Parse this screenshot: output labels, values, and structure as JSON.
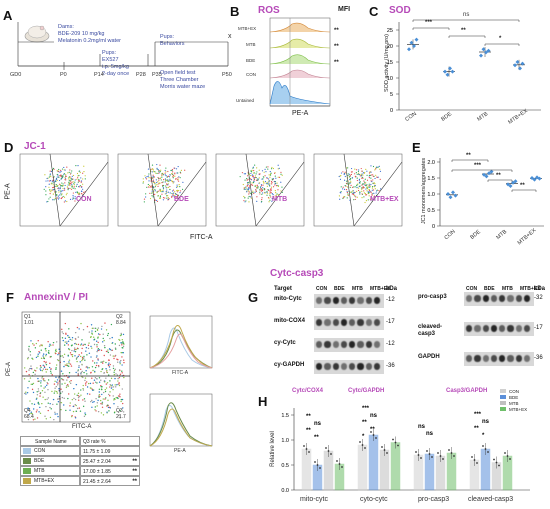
{
  "panels": {
    "A": {
      "label": "A",
      "dams_title": "Dams:",
      "dams_lines": [
        "BDE-209 10 mg/kg",
        "Melatonin 0.2mg/ml water"
      ],
      "pups1_title": "Pups:",
      "pups1_lines": [
        "EX527",
        "i.p. 5mg/kg",
        "2-day once"
      ],
      "pups2_title": "Pups:",
      "pups2_lines": [
        "Behaviors",
        "Open field test",
        "Three Chamber",
        "Morris water maze"
      ],
      "ticks": [
        "GD0",
        "P0",
        "P14",
        "P28",
        "P35",
        "P50"
      ],
      "end_mark": "x"
    },
    "B": {
      "label": "B",
      "title": "ROS",
      "mfi_label": "MFI",
      "xlabel": "PE-A",
      "rows": [
        "MTB+EX",
        "MTB",
        "BDE",
        "CON",
        "Untained"
      ],
      "sig": [
        "**",
        "**",
        "**"
      ],
      "colors": [
        "#e6a65a",
        "#b9c64a",
        "#9ad05a",
        "#d9a3b0",
        "#3a8fd6"
      ]
    },
    "C": {
      "label": "C",
      "title": "SOD",
      "ylabel": "SOD activity (U/mg pro)",
      "yticks": [
        "0",
        "5",
        "10",
        "15",
        "20",
        "25"
      ],
      "categories": [
        "CON",
        "BDE",
        "MTB",
        "MTB+EX"
      ],
      "sig": [
        "ns",
        "***",
        "**",
        "*"
      ]
    },
    "D": {
      "label": "D",
      "title": "JC-1",
      "ylabel": "PE-A",
      "xlabel": "FITC-A",
      "plots": [
        "CON",
        "BDE",
        "MTB",
        "MTB+EX"
      ]
    },
    "E": {
      "label": "E",
      "ylabel": "JC1 monomers/aggregates",
      "yticks": [
        "0",
        "0.5",
        "1.0",
        "1.5",
        "2.0"
      ],
      "categories": [
        "CON",
        "BDE",
        "MTB",
        "MTB+EX"
      ],
      "sig": [
        "**",
        "***",
        "**",
        "**"
      ]
    },
    "F": {
      "label": "F",
      "title": "AnnexinV / PI",
      "ylabel": "PE-A",
      "xlabel": "FITC-A",
      "quadrants": [
        {
          "name": "Q1",
          "value": "1.01"
        },
        {
          "name": "Q2",
          "value": "8.84"
        },
        {
          "name": "Q4",
          "value": "68.4"
        },
        {
          "name": "Q3",
          "value": "21.7"
        }
      ],
      "hist_x1": "FITC-A",
      "hist_x2": "PE-A",
      "table_header": [
        "Sample Name",
        "Q3 rate %"
      ],
      "table_rows": [
        {
          "name": "CON",
          "value": "11.75 ± 1.09",
          "stars": "",
          "color": "#a9c9e6"
        },
        {
          "name": "BDE",
          "value": "25.47 ± 2.04",
          "stars": "**",
          "color": "#6b8c4a"
        },
        {
          "name": "MTB",
          "value": "17.00 ± 1.85",
          "stars": "**",
          "color": "#6fae52"
        },
        {
          "name": "MTB+EX",
          "value": "21.45 ± 2.64",
          "stars": "**",
          "color": "#c0a84a"
        }
      ]
    },
    "G": {
      "label": "G",
      "title": "Cytc-casp3",
      "target_label": "Target",
      "kda_label": "kDa",
      "lanes": [
        "CON",
        "BDE",
        "MTB",
        "MTB+EX"
      ],
      "left_rows": [
        {
          "name": "mito-Cytc",
          "kda": "-12"
        },
        {
          "name": "mito-COX4",
          "kda": "-17"
        },
        {
          "name": "cy-Cytc",
          "kda": "-12"
        },
        {
          "name": "cy-GAPDH",
          "kda": "-36"
        }
      ],
      "right_rows": [
        {
          "name": "pro-casp3",
          "kda": "-32"
        },
        {
          "name": "cleaved-casp3",
          "kda": "-17"
        },
        {
          "name": "GAPDH",
          "kda": "-36"
        }
      ]
    },
    "H": {
      "label": "H",
      "ylabel": "Relative level",
      "yticks": [
        "0.0",
        "0.5",
        "1.0",
        "1.5"
      ],
      "group_titles": [
        "Cytc/COX4",
        "Cytc/GAPDH",
        "",
        "Casp3/GAPDH"
      ],
      "groups": [
        "mito-cytc",
        "cyto-cytc",
        "pro-casp3",
        "cleaved-casp3"
      ],
      "legend": [
        "CON",
        "BDE",
        "MTB",
        "MTB+EX"
      ],
      "legend_colors": [
        "#d0d0d0",
        "#5b8fd9",
        "#c0c0c0",
        "#6fbf6a"
      ],
      "sig_a": [
        "**",
        "ns",
        "**",
        "**"
      ],
      "sig_b": [
        "***",
        "ns",
        "**",
        "**",
        "*"
      ],
      "sig_c": [
        "ns",
        "ns"
      ],
      "sig_d": [
        "***",
        "ns",
        "**",
        "*"
      ]
    }
  }
}
